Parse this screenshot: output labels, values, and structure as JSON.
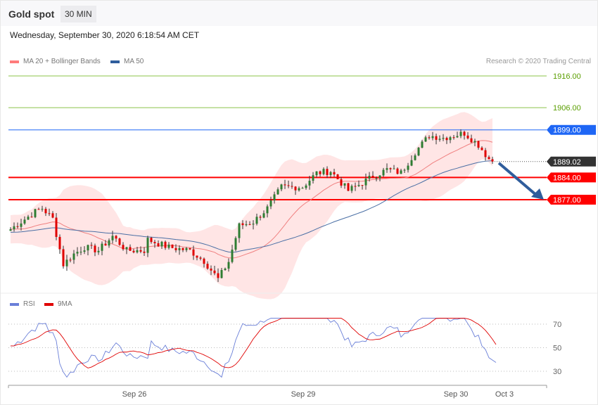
{
  "header": {
    "title": "Gold spot",
    "timeframe": "30 MIN",
    "datetime": "Wednesday, September 30, 2020 6:18:54 AM CET"
  },
  "legend": {
    "ma20": "MA 20 + Bollinger Bands",
    "ma50": "MA 50",
    "rsi": "RSI",
    "rsi_ma": "9MA"
  },
  "credit": "Research © 2020 Trading Central",
  "colors": {
    "bull": "#2e7d32",
    "bear": "#e00000",
    "band": "#ffdede",
    "ma20": "#f08080",
    "ma50": "#4a6fa5",
    "support": "#ff0000",
    "resistance_green": "#8bc34a",
    "resistance_blue": "#1e66f5",
    "last": "#333333",
    "rsi": "#6a7fd8",
    "rsi_ma": "#e00000"
  },
  "chart_data": {
    "type": "candlestick",
    "title": "Gold spot 30 MIN",
    "ylim": [
      1845,
      1920
    ],
    "levels": [
      {
        "value": 1916.0,
        "label": "1916.00",
        "kind": "resistance-green"
      },
      {
        "value": 1906.0,
        "label": "1906.00",
        "kind": "resistance-green"
      },
      {
        "value": 1899.0,
        "label": "1899.00",
        "kind": "resistance-blue"
      },
      {
        "value": 1889.02,
        "label": "1889.02",
        "kind": "last"
      },
      {
        "value": 1884.0,
        "label": "1884.00",
        "kind": "support"
      },
      {
        "value": 1877.0,
        "label": "1877.00",
        "kind": "support"
      }
    ],
    "close_keypoints": [
      [
        0,
        1867.7
      ],
      [
        7,
        1873.2
      ],
      [
        9,
        1874.3
      ],
      [
        12,
        1871
      ],
      [
        15,
        1856.6
      ],
      [
        18,
        1859.9
      ],
      [
        21,
        1862
      ],
      [
        25,
        1861
      ],
      [
        29,
        1865.5
      ],
      [
        33,
        1861
      ],
      [
        38,
        1861
      ],
      [
        39,
        1864.4
      ],
      [
        45,
        1862
      ],
      [
        51,
        1861
      ],
      [
        55,
        1857.7
      ],
      [
        59,
        1852
      ],
      [
        62,
        1857.5
      ],
      [
        65,
        1868.8
      ],
      [
        69,
        1870
      ],
      [
        73,
        1874.3
      ],
      [
        77,
        1881
      ],
      [
        83,
        1881
      ],
      [
        87,
        1885.4
      ],
      [
        91,
        1886
      ],
      [
        96,
        1879.9
      ],
      [
        99,
        1881.7
      ],
      [
        103,
        1884.3
      ],
      [
        107,
        1886.5
      ],
      [
        111,
        1885.5
      ],
      [
        115,
        1892
      ],
      [
        119,
        1897.2
      ],
      [
        123,
        1896.5
      ],
      [
        129,
        1898
      ],
      [
        133,
        1894.3
      ],
      [
        136,
        1889.8
      ],
      [
        137,
        1889.02
      ]
    ],
    "x_ticks": [
      "Sep 26",
      "Sep 29",
      "Sep 30",
      "Oct 3"
    ],
    "rsi": {
      "ylim": [
        30,
        70
      ],
      "ticks": [
        "70",
        "50",
        "30"
      ]
    },
    "forecast_arrow": {
      "from": 1889,
      "to": 1877
    }
  }
}
